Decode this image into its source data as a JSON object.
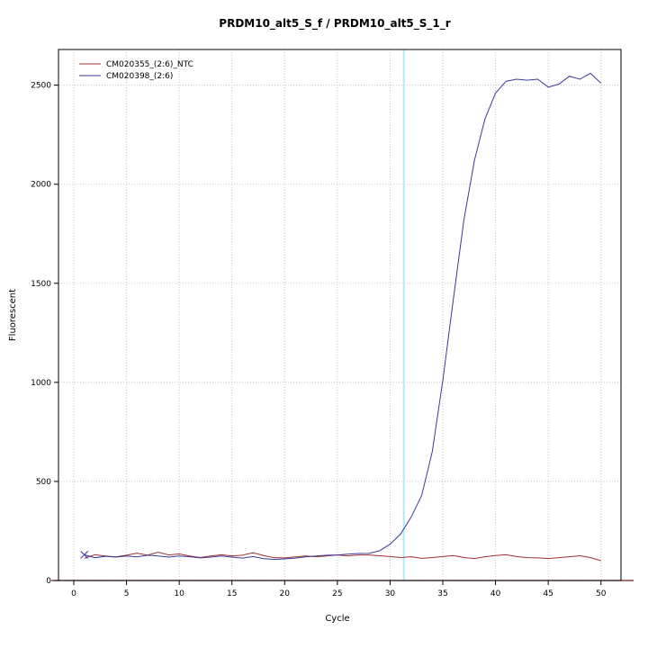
{
  "chart_data": {
    "type": "line",
    "title": "PRDM10_alt5_S_f / PRDM10_alt5_S_1_r",
    "xlabel": "Cycle",
    "ylabel": "Fluorescent",
    "xlim": [
      -1.45,
      51.9
    ],
    "ylim": [
      0,
      2680
    ],
    "xticks": [
      0,
      5,
      10,
      15,
      20,
      25,
      30,
      35,
      40,
      45,
      50
    ],
    "yticks": [
      0,
      500,
      1000,
      1500,
      2000,
      2500
    ],
    "grid": true,
    "grid_color": "#c8c8c8",
    "legend_position": "top-left",
    "threshold_line": {
      "x": 31.3,
      "color": "#a8f0f4"
    },
    "baseline": {
      "y": 0,
      "color": "#7b1c1c"
    },
    "x": [
      1,
      2,
      3,
      4,
      5,
      6,
      7,
      8,
      9,
      10,
      11,
      12,
      13,
      14,
      15,
      16,
      17,
      18,
      19,
      20,
      21,
      22,
      23,
      24,
      25,
      26,
      27,
      28,
      29,
      30,
      31,
      32,
      33,
      34,
      35,
      36,
      37,
      38,
      39,
      40,
      41,
      42,
      43,
      44,
      45,
      46,
      47,
      48,
      49,
      50
    ],
    "series": [
      {
        "name": "CM020355_(2:6)_NTC",
        "color": "#a03033",
        "marker_first": false,
        "values": [
          112,
          130,
          124,
          119,
          128,
          138,
          128,
          143,
          129,
          134,
          124,
          116,
          124,
          130,
          124,
          128,
          140,
          126,
          115,
          114,
          119,
          124,
          120,
          124,
          129,
          124,
          129,
          129,
          125,
          121,
          116,
          120,
          112,
          116,
          121,
          126,
          116,
          111,
          120,
          126,
          130,
          121,
          115,
          114,
          111,
          115,
          120,
          125,
          116,
          100
        ]
      },
      {
        "name": "CM020398_(2:6)",
        "color": "#3a3a9c",
        "marker_first": true,
        "values": [
          130,
          115,
          122,
          118,
          124,
          119,
          128,
          124,
          118,
          124,
          120,
          114,
          118,
          124,
          118,
          113,
          121,
          110,
          106,
          109,
          113,
          119,
          124,
          128,
          129,
          133,
          136,
          137,
          150,
          183,
          235,
          320,
          430,
          650,
          1010,
          1420,
          1820,
          2120,
          2330,
          2460,
          2520,
          2530,
          2525,
          2530,
          2490,
          2505,
          2545,
          2530,
          2560,
          2510
        ]
      }
    ]
  }
}
